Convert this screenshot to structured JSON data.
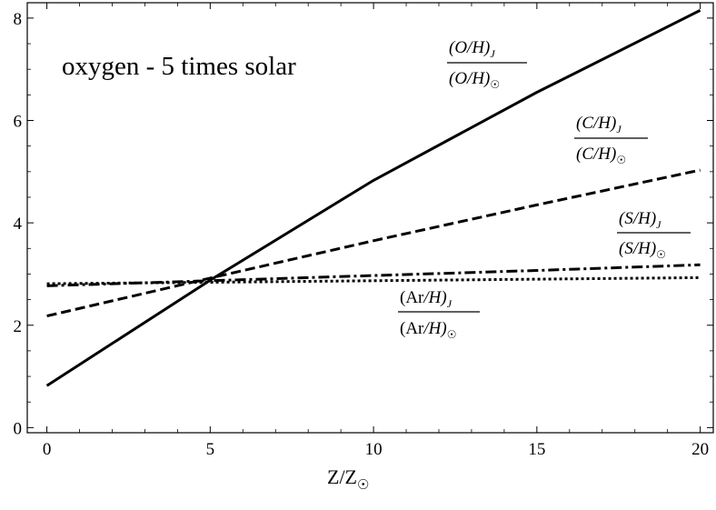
{
  "chart_data": {
    "type": "line",
    "title": "",
    "annotation": "oxygen - 5 times solar",
    "xlabel": "Z/Z",
    "xlabel_sub": "☉",
    "ylabel": "",
    "xlim": [
      -0.6,
      20.4
    ],
    "ylim": [
      -0.1,
      8.3
    ],
    "xticks": [
      0,
      5,
      10,
      15,
      20
    ],
    "yticks": [
      0,
      2,
      4,
      6,
      8
    ],
    "grid": false,
    "frame": true,
    "series": [
      {
        "key": "oxygen",
        "style": "solid",
        "x": [
          0,
          5,
          10,
          15,
          20
        ],
        "y": [
          0.82,
          2.88,
          4.83,
          6.55,
          8.15
        ],
        "label": {
          "num": "(O/H)",
          "num_sub": "J",
          "den": "(O/H)",
          "den_sub": "☉"
        }
      },
      {
        "key": "carbon",
        "style": "dashed",
        "x": [
          0,
          5,
          10,
          15,
          20
        ],
        "y": [
          2.18,
          2.92,
          3.65,
          4.35,
          5.03
        ],
        "label": {
          "num": "(C/H)",
          "num_sub": "J",
          "den": "(C/H)",
          "den_sub": "☉"
        }
      },
      {
        "key": "sulfur",
        "style": "dashdot",
        "x": [
          0,
          5,
          10,
          15,
          20
        ],
        "y": [
          2.77,
          2.87,
          2.97,
          3.07,
          3.18
        ],
        "label": {
          "num": "(S/H)",
          "num_sub": "J",
          "den": "(S/H)",
          "den_sub": "☉"
        }
      },
      {
        "key": "argon",
        "style": "dotted",
        "x": [
          0,
          5,
          10,
          15,
          20
        ],
        "y": [
          2.81,
          2.84,
          2.87,
          2.9,
          2.93
        ],
        "label": {
          "num_pre": "(Ar",
          "num": "/H)",
          "num_sub": "J",
          "den_pre": "(Ar",
          "den": "/H)",
          "den_sub": "☉"
        }
      }
    ],
    "colors": {
      "line": "#000000",
      "background": "#ffffff"
    }
  }
}
